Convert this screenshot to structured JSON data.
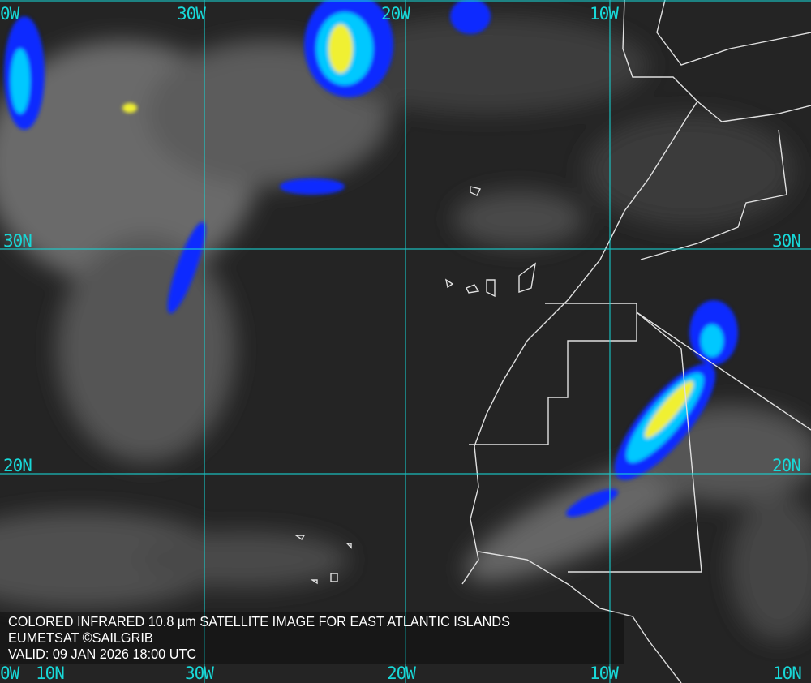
{
  "caption": {
    "line1": "COLORED INFRARED 10.8 µm SATELLITE IMAGE FOR EAST ATLANTIC ISLANDS",
    "line2": "EUMETSAT ©SAILGRIB",
    "line3": "VALID:  09 JAN 2026 18:00 UTC"
  },
  "grid_labels": {
    "top": [
      "0W",
      "30W",
      "20W",
      "10W"
    ],
    "bottom": [
      "0W",
      "10N",
      "30W",
      "20W",
      "10W",
      "10N"
    ],
    "left": [
      "30N",
      "20N"
    ],
    "right": [
      "30N",
      "20N"
    ]
  },
  "colors": {
    "grid": "#18d8d8",
    "coast": "#e0e0e0",
    "cold_cloud_low": "#0a2cff",
    "cold_cloud_mid": "#00c8ff",
    "cold_cloud_high": "#ffff30"
  }
}
